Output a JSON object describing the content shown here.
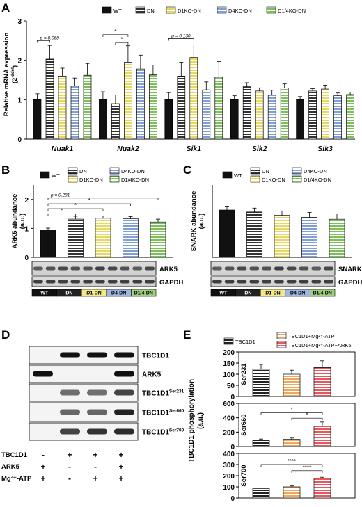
{
  "panels": {
    "A": "A",
    "B": "B",
    "C": "C",
    "D": "D",
    "E": "E"
  },
  "colors": {
    "WT": "#111111",
    "DN": "#333333",
    "D1KO": "#f3e88a",
    "D4KO": "#9fb6e0",
    "D14KO": "#9fd07f",
    "TBC1D1": "#222222",
    "ATP": "#f2a85a",
    "ARK5": "#e8575b"
  },
  "chart_data": [
    {
      "id": "A",
      "type": "bar",
      "legend": [
        "WT",
        "DN",
        "D1KO-DN",
        "D4KO-DN",
        "D1/4KO-DN"
      ],
      "ylabel": "Relative mRNA expression",
      "ylabel_sup": "-ddct",
      "ylabel_unit": "(2",
      "ylim": [
        0,
        3
      ],
      "yticks": [
        "0",
        "1",
        "2",
        "3"
      ],
      "categories": [
        "Nuak1",
        "Nuak2",
        "Sik1",
        "Sik2",
        "Sik3"
      ],
      "series": [
        {
          "name": "WT",
          "values": [
            1.0,
            1.0,
            1.0,
            1.0,
            1.0
          ],
          "err": [
            0.15,
            0.2,
            0.18,
            0.1,
            0.08
          ]
        },
        {
          "name": "DN",
          "values": [
            2.03,
            0.9,
            1.6,
            1.33,
            1.22
          ],
          "err": [
            0.35,
            0.22,
            0.35,
            0.1,
            0.06
          ]
        },
        {
          "name": "D1KO-DN",
          "values": [
            1.6,
            1.95,
            2.07,
            1.22,
            1.27
          ],
          "err": [
            0.2,
            0.42,
            0.32,
            0.08,
            0.1
          ]
        },
        {
          "name": "D4KO-DN",
          "values": [
            1.35,
            1.78,
            1.25,
            1.12,
            1.1
          ],
          "err": [
            0.2,
            0.35,
            0.2,
            0.12,
            0.07
          ]
        },
        {
          "name": "D1/4KO-DN",
          "values": [
            1.62,
            1.63,
            1.57,
            1.3,
            1.13
          ],
          "err": [
            0.3,
            0.25,
            0.4,
            0.1,
            0.06
          ]
        }
      ],
      "annotations": [
        {
          "text": "p = 0.068",
          "cat": 0,
          "from": 0,
          "to": 1,
          "y": 2.5
        },
        {
          "text": "*",
          "cat": 1,
          "from": 0,
          "to": 2,
          "y": 2.65
        },
        {
          "text": "*",
          "cat": 1,
          "from": 1,
          "to": 2,
          "y": 2.45
        },
        {
          "text": "p = 0.130",
          "cat": 2,
          "from": 0,
          "to": 2,
          "y": 2.55
        }
      ]
    },
    {
      "id": "B",
      "type": "bar",
      "legend": [
        "WT",
        "DN",
        "D1KO-DN",
        "D4KO-DN",
        "D1/4KO-DN"
      ],
      "ylabel": "ARK5 abundance",
      "ylabel2": "(a.u.)",
      "ylim": [
        0,
        2.5
      ],
      "yticks": [
        "0",
        "1",
        "2"
      ],
      "series": [
        {
          "name": "WT",
          "values": [
            0.95
          ],
          "err": [
            0.06
          ]
        },
        {
          "name": "DN",
          "values": [
            1.32
          ],
          "err": [
            0.1
          ]
        },
        {
          "name": "D1KO-DN",
          "values": [
            1.35
          ],
          "err": [
            0.08
          ]
        },
        {
          "name": "D4KO-DN",
          "values": [
            1.33
          ],
          "err": [
            0.08
          ]
        },
        {
          "name": "D1/4KO-DN",
          "values": [
            1.22
          ],
          "err": [
            0.1
          ]
        }
      ],
      "annotations": [
        {
          "text": "p = 0.281",
          "from": 0,
          "to": 4,
          "y": 2.05
        },
        {
          "text": "*",
          "from": 0,
          "to": 3,
          "y": 1.85
        },
        {
          "text": "*",
          "from": 0,
          "to": 2,
          "y": 1.68
        },
        {
          "text": "*",
          "from": 0,
          "to": 1,
          "y": 1.5
        }
      ],
      "blots": [
        "ARK5",
        "GAPDH"
      ],
      "groups": [
        "WT",
        "DN",
        "D1-DN",
        "D4-DN",
        "D1/4-DN"
      ]
    },
    {
      "id": "C",
      "type": "bar",
      "legend": [
        "WT",
        "DN",
        "D1KO-DN",
        "D4KO-DN",
        "D1/4KO-DN"
      ],
      "ylabel": "SNARK abundance",
      "ylabel2": "(a.u.)",
      "ylim": [
        0,
        1.5
      ],
      "series": [
        {
          "name": "WT",
          "values": [
            0.98
          ],
          "err": [
            0.08
          ]
        },
        {
          "name": "DN",
          "values": [
            0.94
          ],
          "err": [
            0.08
          ]
        },
        {
          "name": "D1KO-DN",
          "values": [
            0.87
          ],
          "err": [
            0.09
          ]
        },
        {
          "name": "D4KO-DN",
          "values": [
            0.83
          ],
          "err": [
            0.1
          ]
        },
        {
          "name": "D1/4KO-DN",
          "values": [
            0.79
          ],
          "err": [
            0.11
          ]
        }
      ],
      "blots": [
        "SNARK",
        "GAPDH"
      ],
      "groups": [
        "WT",
        "DN",
        "D1-DN",
        "D4-DN",
        "D1/4-DN"
      ]
    },
    {
      "id": "E",
      "type": "bar",
      "legend": [
        "TBC1D1",
        "TBC1D1+Mg²⁺-ATP",
        "TBC1D1+Mg²⁺-ATP+ARK5"
      ],
      "ylabel": "TBC1D1 phosphorylation",
      "ylabel2": "(a.u.)",
      "subplots": [
        {
          "site": "Ser231",
          "ylim": [
            0,
            200
          ],
          "yticks": [
            "0",
            "50",
            "100",
            "150",
            "200"
          ],
          "values": [
            122,
            100,
            130
          ],
          "err": [
            22,
            18,
            30
          ],
          "annotations": []
        },
        {
          "site": "Ser660",
          "ylim": [
            0,
            600
          ],
          "yticks": [
            "0",
            "200",
            "400",
            "600"
          ],
          "values": [
            90,
            100,
            285
          ],
          "err": [
            15,
            18,
            55
          ],
          "annotations": [
            {
              "text": "*",
              "from": 0,
              "to": 2,
              "y": 470
            },
            {
              "text": "*",
              "from": 1,
              "to": 2,
              "y": 395
            }
          ]
        },
        {
          "site": "Ser700",
          "ylim": [
            0,
            400
          ],
          "yticks": [
            "0",
            "100",
            "200",
            "300",
            "400"
          ],
          "values": [
            85,
            100,
            178
          ],
          "err": [
            6,
            8,
            8
          ],
          "annotations": [
            {
              "text": "****",
              "from": 0,
              "to": 2,
              "y": 300
            },
            {
              "text": "****",
              "from": 1,
              "to": 2,
              "y": 245
            }
          ]
        }
      ]
    }
  ],
  "blotD": {
    "bands": [
      "TBC1D1",
      "ARK5",
      "TBC1D1",
      "TBC1D1",
      "TBC1D1"
    ],
    "sups": [
      "",
      "",
      "Ser231",
      "Ser660",
      "Ser700"
    ],
    "rows": [
      {
        "label": "TBC1D1",
        "signs": [
          "-",
          "+",
          "+",
          "+"
        ]
      },
      {
        "label": "ARK5",
        "signs": [
          "+",
          "-",
          "-",
          "+"
        ]
      },
      {
        "label": "Mg²⁺-ATP",
        "signs": [
          "+",
          "-",
          "+",
          "+"
        ]
      }
    ]
  }
}
